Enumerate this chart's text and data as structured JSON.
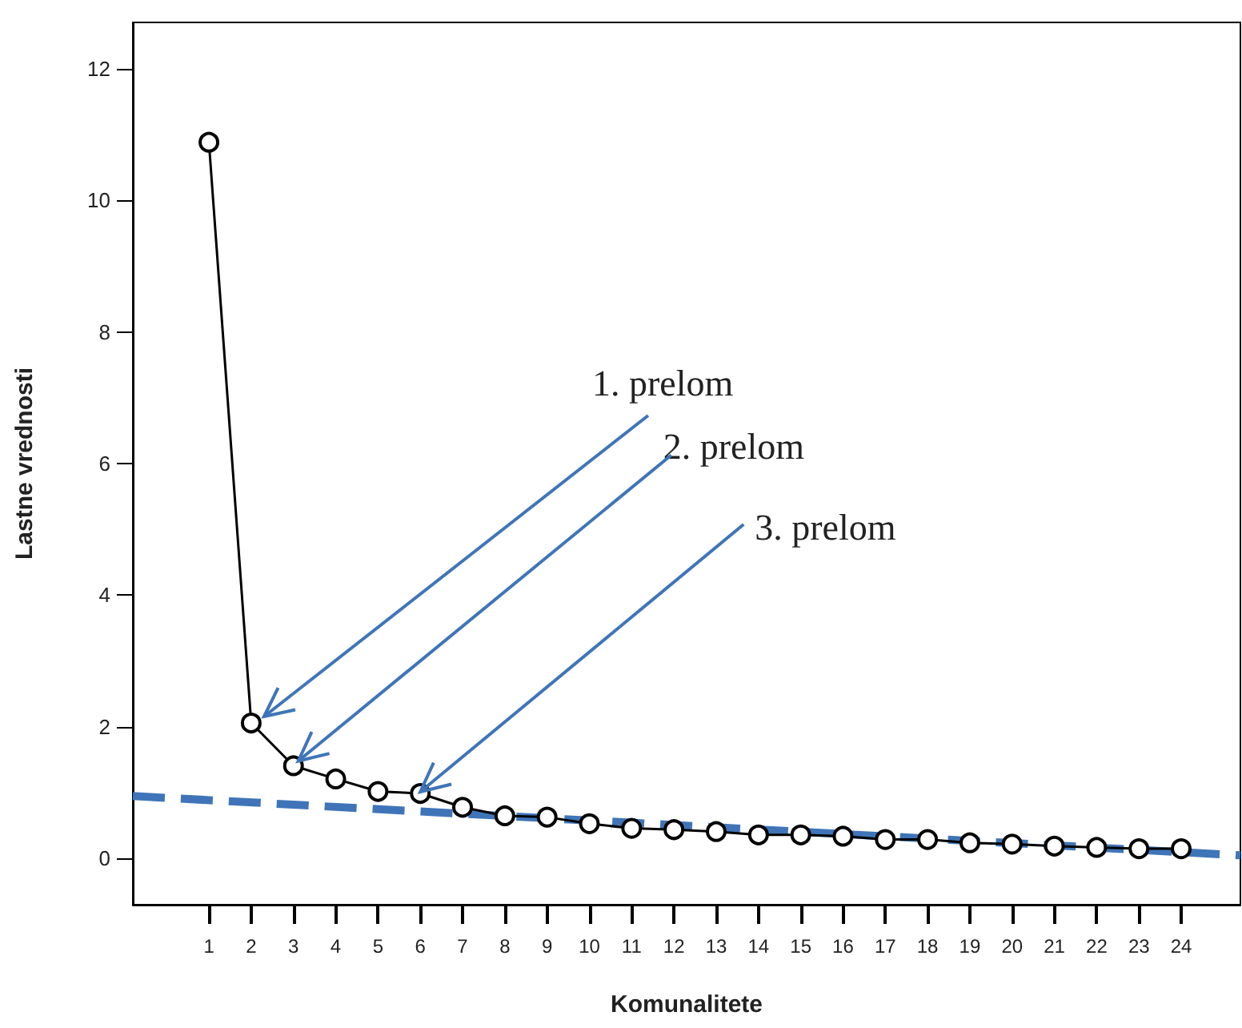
{
  "chart_data": {
    "type": "line",
    "xlabel": "Komunalitete",
    "ylabel": "Lastne vrednosti",
    "x": [
      1,
      2,
      3,
      4,
      5,
      6,
      7,
      8,
      9,
      10,
      11,
      12,
      13,
      14,
      15,
      16,
      17,
      18,
      19,
      20,
      21,
      22,
      23,
      24
    ],
    "xlim": [
      -0.8,
      25.4
    ],
    "xticks": [
      1,
      2,
      3,
      4,
      5,
      6,
      7,
      8,
      9,
      10,
      11,
      12,
      13,
      14,
      15,
      16,
      17,
      18,
      19,
      20,
      21,
      22,
      23,
      24
    ],
    "ylim": [
      -0.7,
      12.7
    ],
    "yticks": [
      0,
      2,
      4,
      6,
      8,
      10,
      12
    ],
    "series": [
      {
        "color": "#000000",
        "marker": "circle",
        "line_style": "solid",
        "values": [
          10.88,
          2.06,
          1.41,
          1.21,
          1.02,
          0.99,
          0.78,
          0.65,
          0.63,
          0.53,
          0.46,
          0.44,
          0.41,
          0.36,
          0.36,
          0.34,
          0.29,
          0.29,
          0.24,
          0.22,
          0.19,
          0.17,
          0.15,
          0.15
        ]
      },
      {
        "type": "line",
        "color": "#3f75b8",
        "marker": "none",
        "line_style": "dashed",
        "x": [
          -0.8,
          25.4
        ],
        "values": [
          0.95,
          0.05
        ]
      }
    ],
    "annotations": [
      {
        "text": "1. prelom",
        "x": 2,
        "y": 2.06
      },
      {
        "text": "2. prelom",
        "x": 3,
        "y": 1.41
      },
      {
        "text": "3. prelom",
        "x": 6,
        "y": 0.99
      }
    ],
    "grid": false
  }
}
